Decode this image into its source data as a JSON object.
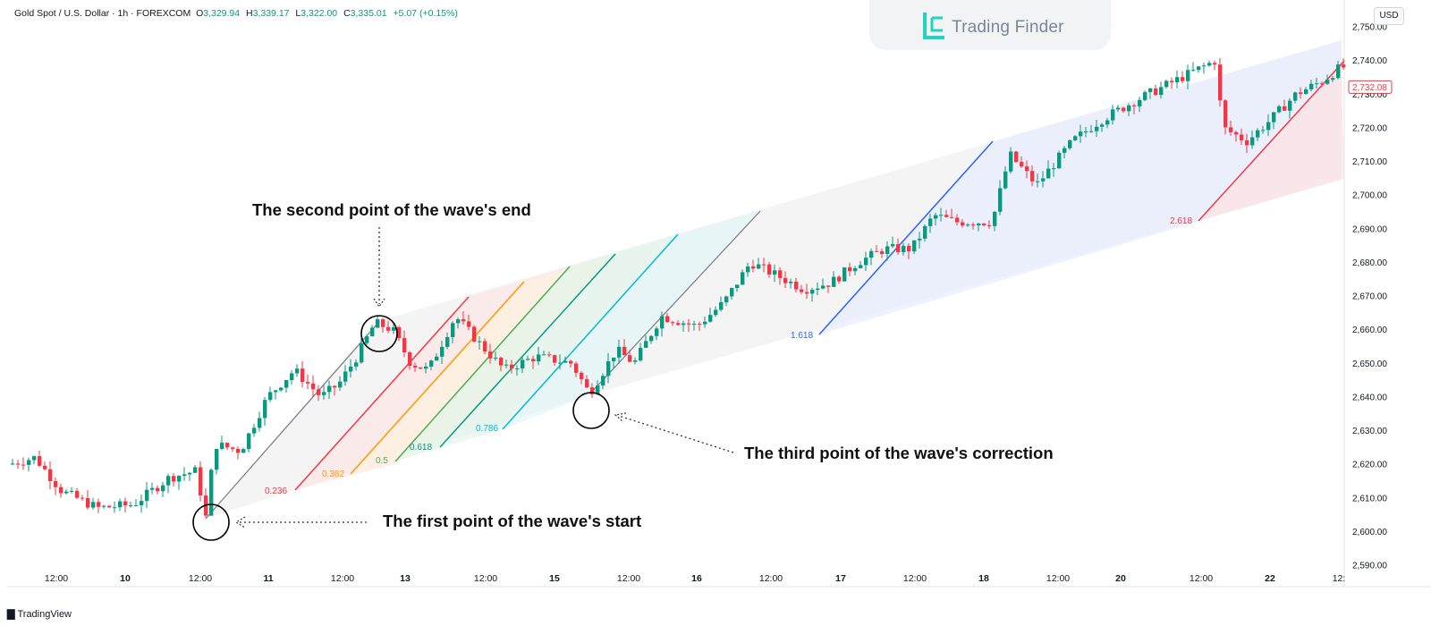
{
  "header": {
    "symbol": "Gold Spot / U.S. Dollar · 1h · FOREXCOM",
    "o_label": "O",
    "o": "3,329.94",
    "h_label": "H",
    "h": "3,339.17",
    "l_label": "L",
    "l": "3,322.00",
    "c_label": "C",
    "c": "3,335.01",
    "change": "+5.07 (+0.15%)"
  },
  "brand": "Trading Finder",
  "currency_button": "USD",
  "footer_logo": "TradingView",
  "annotations": {
    "second_point": "The second point of the wave's end",
    "third_point": "The third point of the wave's correction",
    "first_point": "The first point of the wave's start"
  },
  "colors": {
    "up": "#089981",
    "down": "#f23645",
    "fib_0236": "#f23645",
    "fib_0382": "#ff9800",
    "fib_05": "#4caf50",
    "fib_0618": "#089981",
    "fib_0786": "#00bcd4",
    "fib_1618": "#2962ff",
    "fib_2618": "#f23645"
  },
  "chart_data": {
    "type": "candlestick",
    "title": "Gold Spot / U.S. Dollar · 1h · FOREXCOM",
    "xlabel": "",
    "ylabel": "USD",
    "ylim": [
      2586,
      2752
    ],
    "y_ticks": [
      "2,590.00",
      "2,600.00",
      "2,610.00",
      "2,620.00",
      "2,630.00",
      "2,640.00",
      "2,650.00",
      "2,660.00",
      "2,670.00",
      "2,680.00",
      "2,690.00",
      "2,700.00",
      "2,710.00",
      "2,720.00",
      "2,730.00",
      "2,740.00",
      "2,750.00"
    ],
    "x_ticks": [
      "12:00",
      "10",
      "12:00",
      "11",
      "12:00",
      "13",
      "12:00",
      "15",
      "12:00",
      "16",
      "12:00",
      "17",
      "12:00",
      "18",
      "12:00",
      "20",
      "12:00",
      "22",
      "12:"
    ],
    "current_price": "2,732.08",
    "fib_levels": [
      {
        "label": "0.236",
        "color": "#f23645",
        "price": 2616
      },
      {
        "label": "0.382",
        "color": "#ff9800",
        "price": 2620
      },
      {
        "label": "0.5",
        "color": "#4caf50",
        "price": 2624
      },
      {
        "label": "0.618",
        "color": "#089981",
        "price": 2628
      },
      {
        "label": "0.786",
        "color": "#00bcd4",
        "price": 2634
      },
      {
        "label": "1.618",
        "color": "#2962ff",
        "price": 2660
      },
      {
        "label": "2.618",
        "color": "#f23645",
        "price": 2692
      }
    ],
    "points": {
      "start_price": 2603,
      "end_price": 2662,
      "correction_price": 2641
    }
  }
}
